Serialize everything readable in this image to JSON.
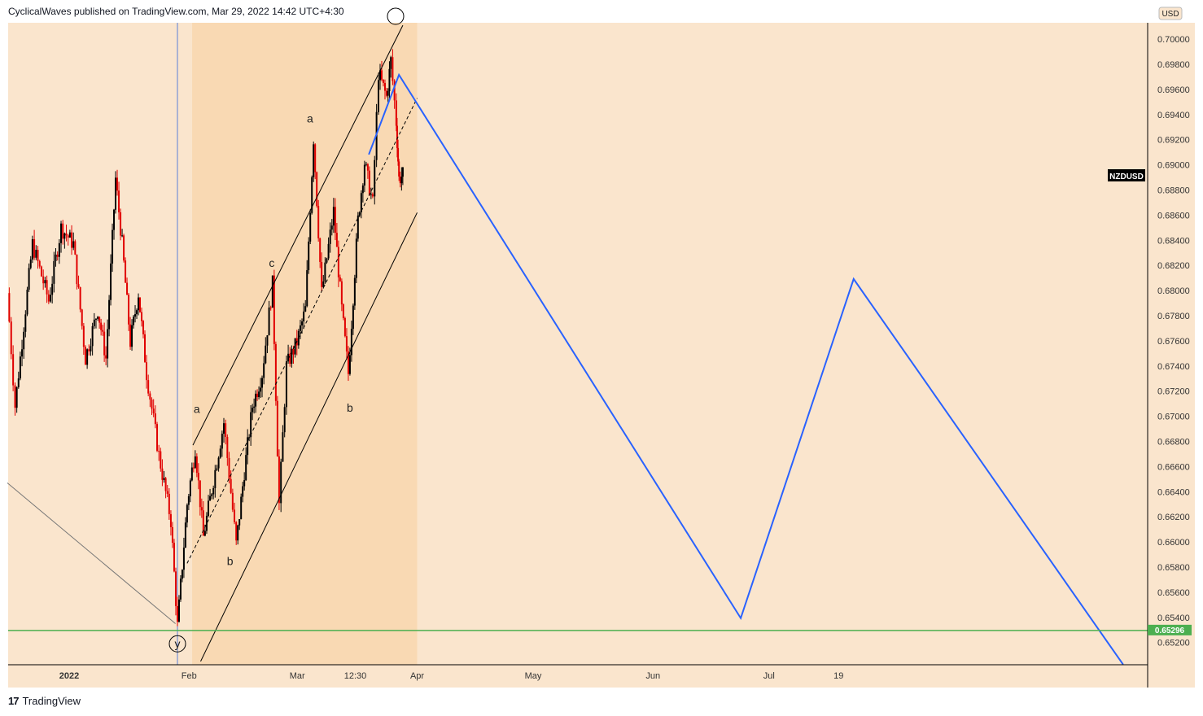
{
  "header": "CyclicalWaves published on TradingView.com, Mar 29, 2022 14:42 UTC+4:30",
  "footer": {
    "brand": "TradingView"
  },
  "colors": {
    "bg": "#fae5cd",
    "channel": "#f9d9b3",
    "up": "#000000",
    "down": "#e00000",
    "projection": "#2962ff",
    "support": "#4caf50"
  },
  "chart_data": {
    "type": "candlestick",
    "symbol": "NZDUSD",
    "currency": "USD",
    "ylim": [
      0.6505,
      0.7001
    ],
    "y_ticks": [
      "0.70000",
      "0.69800",
      "0.69600",
      "0.69400",
      "0.69200",
      "0.69000",
      "0.68800",
      "0.68600",
      "0.68400",
      "0.68200",
      "0.68000",
      "0.67800",
      "0.67600",
      "0.67400",
      "0.67200",
      "0.67000",
      "0.66800",
      "0.66600",
      "0.66400",
      "0.66200",
      "0.66000",
      "0.65800",
      "0.65600",
      "0.65400",
      "0.65200"
    ],
    "x_ticks": [
      {
        "label": "2022",
        "day": 0
      },
      {
        "label": "Feb",
        "day": 31
      },
      {
        "label": "Mar",
        "day": 59
      },
      {
        "label": "12:30",
        "day": 74
      },
      {
        "label": "Apr",
        "day": 90
      },
      {
        "label": "May",
        "day": 120
      },
      {
        "label": "Jun",
        "day": 151
      },
      {
        "label": "Jul",
        "day": 181
      },
      {
        "label": "19",
        "day": 199
      }
    ],
    "price_path": [
      [
        -16,
        0.6798
      ],
      [
        -14,
        0.6708
      ],
      [
        -9.5,
        0.6837
      ],
      [
        -5.3,
        0.6792
      ],
      [
        -2.1,
        0.685
      ],
      [
        1.1,
        0.6837
      ],
      [
        4.2,
        0.6746
      ],
      [
        7.4,
        0.6785
      ],
      [
        9.5,
        0.6746
      ],
      [
        12,
        0.6889
      ],
      [
        13.7,
        0.6837
      ],
      [
        15.8,
        0.6759
      ],
      [
        17.9,
        0.6798
      ],
      [
        20,
        0.6734
      ],
      [
        23.2,
        0.6669
      ],
      [
        26.3,
        0.6617
      ],
      [
        28,
        0.6533
      ],
      [
        30.5,
        0.663
      ],
      [
        32.6,
        0.6675
      ],
      [
        34.7,
        0.6604
      ],
      [
        37.3,
        0.6649
      ],
      [
        40,
        0.6695
      ],
      [
        43.2,
        0.6598
      ],
      [
        45.3,
        0.6656
      ],
      [
        47.4,
        0.6708
      ],
      [
        49.9,
        0.6734
      ],
      [
        52.6,
        0.6805
      ],
      [
        54.3,
        0.663
      ],
      [
        56.2,
        0.674
      ],
      [
        58.9,
        0.6759
      ],
      [
        61.1,
        0.6785
      ],
      [
        63.2,
        0.6921
      ],
      [
        65.3,
        0.6798
      ],
      [
        68.4,
        0.6863
      ],
      [
        70.5,
        0.6785
      ],
      [
        72.2,
        0.6734
      ],
      [
        74.7,
        0.6856
      ],
      [
        76.4,
        0.6902
      ],
      [
        78.5,
        0.6869
      ],
      [
        80,
        0.6973
      ],
      [
        82.1,
        0.6954
      ],
      [
        83.2,
        0.6983
      ],
      [
        84.6,
        0.6934
      ],
      [
        85.3,
        0.6889
      ],
      [
        86.3,
        0.6892
      ]
    ],
    "last_price": "0.65296",
    "support_level": 0.65296,
    "projection": [
      [
        77.5,
        0.69082
      ],
      [
        85.3,
        0.69716
      ],
      [
        173.7,
        0.65394
      ],
      [
        202.9,
        0.68092
      ],
      [
        272.6,
        0.65025
      ]
    ],
    "channel": {
      "upper": [
        [
          32,
          0.6677
        ],
        [
          86.3,
          0.7011
        ]
      ],
      "lower": [
        [
          34,
          0.6505
        ],
        [
          90,
          0.6862
        ]
      ],
      "mid": [
        [
          30.5,
          0.6583
        ],
        [
          90,
          0.6953
        ]
      ],
      "shade_days": [
        31.8,
        90
      ]
    },
    "vline_day": 28,
    "trendline": [
      [
        -16,
        0.6647
      ],
      [
        27.5,
        0.6535
      ]
    ],
    "wave_labels": [
      {
        "text": "a",
        "day": 33,
        "price": 0.6706,
        "circled": false
      },
      {
        "text": "b",
        "day": 41.6,
        "price": 0.6585,
        "circled": false
      },
      {
        "text": "c",
        "day": 52.4,
        "price": 0.6822,
        "circled": false
      },
      {
        "text": "a",
        "day": 62.3,
        "price": 0.6937,
        "circled": false
      },
      {
        "text": "b",
        "day": 72.6,
        "price": 0.6707,
        "circled": false
      },
      {
        "text": "y",
        "day": 28,
        "price": 0.6519,
        "circled": true
      }
    ]
  }
}
